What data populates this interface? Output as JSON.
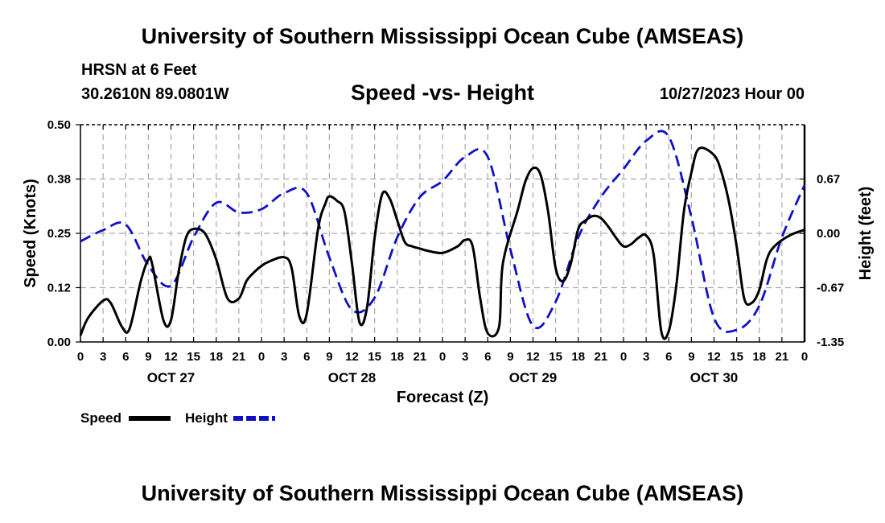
{
  "header": {
    "title": "University of Southern Mississippi Ocean Cube (AMSEAS)",
    "station": "HRSN at 6 Feet",
    "coordinates": "30.2610N  89.0801W",
    "chart_title": "Speed -vs- Height",
    "timestamp": "10/27/2023 Hour 00"
  },
  "footer": {
    "title": "University of Southern Mississippi Ocean Cube (AMSEAS)"
  },
  "colors": {
    "speed": "#000000",
    "height": "#1010c8",
    "grid": "#aaaaaa"
  },
  "chart_data": {
    "type": "line",
    "title": "Speed -vs- Height",
    "xlabel": "Forecast (Z)",
    "ylabel": "Speed (Knots)",
    "y2label": "Height (feet)",
    "xlim": [
      0,
      96
    ],
    "ylim": [
      0,
      0.5
    ],
    "y2lim": [
      -1.35,
      1.35
    ],
    "x_ticks": [
      0,
      3,
      6,
      9,
      12,
      15,
      18,
      21,
      24,
      27,
      30,
      33,
      36,
      39,
      42,
      45,
      48,
      51,
      54,
      57,
      60,
      63,
      66,
      69,
      72,
      75,
      78,
      81,
      84,
      87,
      90,
      93,
      96
    ],
    "x_tick_labels": [
      "0",
      "3",
      "6",
      "9",
      "12",
      "15",
      "18",
      "21",
      "0",
      "3",
      "6",
      "9",
      "12",
      "15",
      "18",
      "21",
      "0",
      "3",
      "6",
      "9",
      "12",
      "15",
      "18",
      "21",
      "0",
      "3",
      "6",
      "9",
      "12",
      "15",
      "18",
      "21",
      "0"
    ],
    "date_labels": [
      {
        "x": 12,
        "label": "OCT 27"
      },
      {
        "x": 36,
        "label": "OCT 28"
      },
      {
        "x": 60,
        "label": "OCT 29"
      },
      {
        "x": 84,
        "label": "OCT 30"
      }
    ],
    "y_ticks": [
      0,
      0.125,
      0.25,
      0.375,
      0.5
    ],
    "y_tick_labels": [
      "0.00",
      "0.12",
      "0.25",
      "0.38",
      "0.50"
    ],
    "y2_ticks": [
      -1.35,
      -0.675,
      0,
      0.675
    ],
    "y2_tick_labels": [
      "-1.35",
      "-0.67",
      "0.00",
      "0.67"
    ],
    "grid": true,
    "legend": {
      "position": "bottom-left"
    },
    "series": [
      {
        "name": "Speed",
        "axis": "left",
        "style": "solid",
        "x": [
          0,
          1,
          3,
          4,
          5.5,
          6.5,
          8,
          9,
          9.5,
          11,
          12,
          13,
          14,
          15,
          16.5,
          18,
          19.5,
          21,
          22,
          23,
          24,
          25,
          27,
          28,
          29,
          30,
          31.5,
          32.5,
          33,
          34,
          35,
          36,
          37,
          38,
          39,
          40,
          41,
          42,
          43,
          44,
          45,
          46,
          48,
          50,
          51,
          52,
          53,
          54,
          55.5,
          56,
          58,
          59,
          60,
          61,
          62,
          63,
          64,
          65,
          66,
          67,
          68,
          69,
          70,
          71,
          72,
          73,
          74,
          75,
          76,
          77,
          78,
          79,
          80,
          81,
          82,
          84,
          85,
          86,
          87,
          88,
          89,
          90,
          91,
          92,
          94,
          96
        ],
        "values": [
          0.015,
          0.055,
          0.095,
          0.09,
          0.035,
          0.03,
          0.14,
          0.19,
          0.18,
          0.05,
          0.05,
          0.16,
          0.24,
          0.26,
          0.25,
          0.19,
          0.1,
          0.1,
          0.14,
          0.16,
          0.175,
          0.185,
          0.195,
          0.17,
          0.06,
          0.065,
          0.26,
          0.32,
          0.335,
          0.325,
          0.3,
          0.18,
          0.045,
          0.08,
          0.24,
          0.34,
          0.33,
          0.28,
          0.23,
          0.22,
          0.215,
          0.21,
          0.205,
          0.22,
          0.235,
          0.22,
          0.1,
          0.02,
          0.035,
          0.18,
          0.305,
          0.37,
          0.4,
          0.385,
          0.3,
          0.17,
          0.14,
          0.18,
          0.26,
          0.28,
          0.29,
          0.285,
          0.265,
          0.24,
          0.22,
          0.225,
          0.24,
          0.245,
          0.2,
          0.025,
          0.025,
          0.13,
          0.3,
          0.39,
          0.445,
          0.43,
          0.39,
          0.32,
          0.22,
          0.1,
          0.09,
          0.12,
          0.19,
          0.22,
          0.245,
          0.258
        ]
      },
      {
        "name": "Height",
        "axis": "right",
        "style": "dashed",
        "x": [
          0,
          3,
          6,
          9,
          12,
          15,
          18,
          21,
          24,
          27,
          30,
          33,
          36,
          39,
          42,
          45,
          48,
          51,
          54,
          57,
          60,
          63,
          66,
          69,
          72,
          75,
          78,
          81,
          84,
          87,
          90,
          93,
          96
        ],
        "values": [
          -0.1,
          0.04,
          0.11,
          -0.4,
          -0.65,
          -0.05,
          0.38,
          0.26,
          0.3,
          0.5,
          0.5,
          -0.3,
          -0.95,
          -0.8,
          -0.05,
          0.45,
          0.65,
          0.95,
          0.95,
          -0.2,
          -1.15,
          -0.85,
          -0.05,
          0.45,
          0.8,
          1.15,
          1.2,
          0.2,
          -1.05,
          -1.2,
          -0.9,
          -0.05,
          0.6
        ]
      }
    ]
  }
}
